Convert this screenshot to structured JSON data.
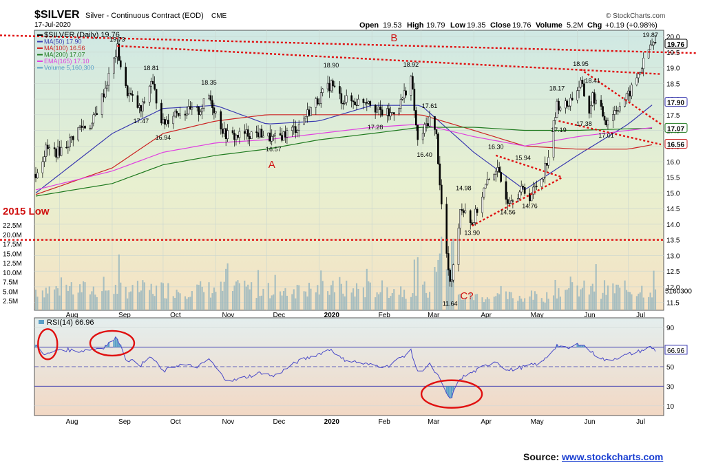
{
  "header": {
    "symbol_title": "$SILVER",
    "subtitle": "Silver - Continuous Contract (EOD)",
    "exchange": "CME",
    "date": "17-Jul-2020",
    "brand": "© StockCharts.com",
    "quote": {
      "open_label": "Open",
      "open": "19.53",
      "high_label": "High",
      "high": "19.79",
      "low_label": "Low",
      "low": "19.35",
      "close_label": "Close",
      "close": "19.76",
      "volume_label": "Volume",
      "volume": "5.2M",
      "chg_label": "Chg",
      "chg": "+0.19 (+0.98%)"
    }
  },
  "legend": [
    {
      "text": "$SILVER (Daily) 19.76",
      "color": "#000000"
    },
    {
      "text": "MA(50) 17.90",
      "color": "#3a3ab0"
    },
    {
      "text": "MA(100) 16.56",
      "color": "#cc2222"
    },
    {
      "text": "MA(200) 17.07",
      "color": "#1f7a1f"
    },
    {
      "text": "EMA(165) 17.10",
      "color": "#e040e0"
    },
    {
      "text": "Volume 5,160,300",
      "color": "#5aa0c8"
    }
  ],
  "annotations": {
    "label_A": "A",
    "label_B": "B",
    "label_C": "C?",
    "low_2015": "2015 Low",
    "price_labels": [
      {
        "text": "19.73",
        "date": "2019-09-04",
        "value": 19.73
      },
      {
        "text": "18.81",
        "date": "2019-09-24",
        "value": 18.81
      },
      {
        "text": "17.47",
        "date": "2019-09-18",
        "value": 17.47
      },
      {
        "text": "16.94",
        "date": "2019-10-01",
        "value": 16.94
      },
      {
        "text": "18.35",
        "date": "2019-10-28",
        "value": 18.35
      },
      {
        "text": "16.57",
        "date": "2019-12-05",
        "value": 16.57
      },
      {
        "text": "18.90",
        "date": "2020-01-08",
        "value": 18.9
      },
      {
        "text": "17.28",
        "date": "2020-02-03",
        "value": 17.28
      },
      {
        "text": "18.92",
        "date": "2020-02-24",
        "value": 18.92
      },
      {
        "text": "17.61",
        "date": "2020-03-06",
        "value": 17.61
      },
      {
        "text": "16.40",
        "date": "2020-03-03",
        "value": 16.4
      },
      {
        "text": "11.64",
        "date": "2020-03-18",
        "value": 11.64
      },
      {
        "text": "14.98",
        "date": "2020-03-26",
        "value": 14.98
      },
      {
        "text": "13.90",
        "date": "2020-03-31",
        "value": 13.9
      },
      {
        "text": "16.30",
        "date": "2020-04-14",
        "value": 16.3
      },
      {
        "text": "14.56",
        "date": "2020-04-21",
        "value": 14.56
      },
      {
        "text": "15.94",
        "date": "2020-04-30",
        "value": 15.94
      },
      {
        "text": "14.76",
        "date": "2020-05-04",
        "value": 14.76
      },
      {
        "text": "18.17",
        "date": "2020-05-20",
        "value": 18.17
      },
      {
        "text": "17.19",
        "date": "2020-05-21",
        "value": 17.19
      },
      {
        "text": "18.95",
        "date": "2020-06-03",
        "value": 18.95
      },
      {
        "text": "18.41",
        "date": "2020-06-10",
        "value": 18.41
      },
      {
        "text": "17.38",
        "date": "2020-06-05",
        "value": 17.38
      },
      {
        "text": "17.01",
        "date": "2020-06-18",
        "value": 17.01
      },
      {
        "text": "19.87",
        "date": "2020-07-14",
        "value": 19.87
      }
    ]
  },
  "badges": [
    {
      "text": "19.76",
      "value": 19.76,
      "color": "#000000",
      "bg": "#ffffff"
    },
    {
      "text": "17.90",
      "value": 17.9,
      "color": "#3a3ab0",
      "bg": "#ffffff"
    },
    {
      "text": "17.07",
      "value": 17.07,
      "color": "#1f7a1f",
      "bg": "#ffffff"
    },
    {
      "text": "16.56",
      "value": 16.56,
      "color": "#cc2222",
      "bg": "#ffffff"
    }
  ],
  "volume_badge": "5160300",
  "rsi": {
    "label": "RSI(14) 66.96",
    "badge": "66.96",
    "badge_value": 66.96,
    "ticks": [
      90,
      70,
      50,
      30,
      10
    ]
  },
  "source": {
    "label": "Source:",
    "link_text": "www.stockcharts.com"
  },
  "colors": {
    "price_bg_top": "#cfe8e4",
    "price_bg_bottom": "#f5e6c8",
    "rsi_bg_top": "#e8f0f0",
    "rsi_bg_bottom": "#f2dcc8",
    "dotted_red": "#e01010",
    "circle_red": "#e01010",
    "volume": "#9ab7be"
  },
  "chart_data": {
    "type": "candlestick",
    "x_axis": {
      "tick_labels": [
        "Aug",
        "Sep",
        "Oct",
        "Nov",
        "Dec",
        "2020",
        "Feb",
        "Mar",
        "Apr",
        "May",
        "Jun",
        "Jul"
      ],
      "tick_dates": [
        "2019-08-01",
        "2019-09-01",
        "2019-10-01",
        "2019-11-01",
        "2019-12-01",
        "2020-01-01",
        "2020-02-01",
        "2020-03-01",
        "2020-04-01",
        "2020-05-01",
        "2020-06-01",
        "2020-07-01"
      ],
      "range": [
        "2019-07-18",
        "2020-07-17"
      ]
    },
    "y_axis": {
      "tick_labels": [
        "20.0",
        "19.5",
        "19.0",
        "18.5",
        "18.0",
        "17.5",
        "17.0",
        "16.5",
        "16.0",
        "15.5",
        "15.0",
        "14.5",
        "14.0",
        "13.5",
        "13.0",
        "12.5",
        "12.0",
        "11.5"
      ],
      "range": [
        11.25,
        20.2
      ]
    },
    "volume_axis": {
      "tick_labels": [
        "22.5M",
        "20.0M",
        "17.5M",
        "15.0M",
        "12.5M",
        "10.0M",
        "7.5M",
        "5.0M",
        "2.5M"
      ],
      "range_millions": [
        0,
        22.5
      ]
    },
    "price_anchors": [
      [
        "2019-07-18",
        15.6
      ],
      [
        "2019-07-24",
        16.4
      ],
      [
        "2019-07-31",
        16.3
      ],
      [
        "2019-08-06",
        16.6
      ],
      [
        "2019-08-13",
        17.1
      ],
      [
        "2019-08-20",
        17.2
      ],
      [
        "2019-08-27",
        18.2
      ],
      [
        "2019-09-04",
        19.6
      ],
      [
        "2019-09-09",
        18.3
      ],
      [
        "2019-09-18",
        17.6
      ],
      [
        "2019-09-24",
        18.6
      ],
      [
        "2019-10-01",
        17.2
      ],
      [
        "2019-10-08",
        17.6
      ],
      [
        "2019-10-16",
        17.6
      ],
      [
        "2019-10-22",
        17.6
      ],
      [
        "2019-10-28",
        18.1
      ],
      [
        "2019-11-06",
        16.9
      ],
      [
        "2019-11-12",
        16.8
      ],
      [
        "2019-11-20",
        16.9
      ],
      [
        "2019-11-28",
        16.9
      ],
      [
        "2019-12-05",
        16.7
      ],
      [
        "2019-12-12",
        16.9
      ],
      [
        "2019-12-19",
        17.1
      ],
      [
        "2019-12-27",
        17.7
      ],
      [
        "2020-01-08",
        18.5
      ],
      [
        "2020-01-14",
        18.0
      ],
      [
        "2020-01-22",
        17.9
      ],
      [
        "2020-01-30",
        18.0
      ],
      [
        "2020-02-05",
        17.6
      ],
      [
        "2020-02-12",
        17.5
      ],
      [
        "2020-02-18",
        17.9
      ],
      [
        "2020-02-24",
        18.7
      ],
      [
        "2020-02-28",
        16.6
      ],
      [
        "2020-03-06",
        17.4
      ],
      [
        "2020-03-10",
        16.8
      ],
      [
        "2020-03-13",
        14.6
      ],
      [
        "2020-03-18",
        12.0
      ],
      [
        "2020-03-20",
        12.6
      ],
      [
        "2020-03-24",
        14.5
      ],
      [
        "2020-03-27",
        14.5
      ],
      [
        "2020-03-31",
        14.0
      ],
      [
        "2020-04-07",
        15.1
      ],
      [
        "2020-04-14",
        15.8
      ],
      [
        "2020-04-21",
        14.8
      ],
      [
        "2020-04-30",
        15.1
      ],
      [
        "2020-05-04",
        14.9
      ],
      [
        "2020-05-11",
        15.5
      ],
      [
        "2020-05-15",
        16.2
      ],
      [
        "2020-05-20",
        17.8
      ],
      [
        "2020-05-26",
        17.8
      ],
      [
        "2020-06-03",
        18.5
      ],
      [
        "2020-06-08",
        17.6
      ],
      [
        "2020-06-10",
        18.1
      ],
      [
        "2020-06-18",
        17.3
      ],
      [
        "2020-06-24",
        17.7
      ],
      [
        "2020-07-01",
        18.1
      ],
      [
        "2020-07-08",
        18.9
      ],
      [
        "2020-07-14",
        19.7
      ],
      [
        "2020-07-17",
        19.76
      ]
    ],
    "series": [
      {
        "name": "MA(50)",
        "anchors": [
          [
            "2019-07-18",
            15.0
          ],
          [
            "2019-09-01",
            16.9
          ],
          [
            "2019-10-01",
            17.7
          ],
          [
            "2019-11-01",
            17.8
          ],
          [
            "2019-12-01",
            17.2
          ],
          [
            "2020-01-01",
            17.3
          ],
          [
            "2020-02-01",
            17.8
          ],
          [
            "2020-03-01",
            17.8
          ],
          [
            "2020-04-01",
            16.3
          ],
          [
            "2020-05-01",
            15.1
          ],
          [
            "2020-06-01",
            16.2
          ],
          [
            "2020-07-01",
            17.2
          ],
          [
            "2020-07-17",
            17.9
          ]
        ]
      },
      {
        "name": "MA(100)",
        "anchors": [
          [
            "2019-07-18",
            14.95
          ],
          [
            "2019-09-01",
            15.8
          ],
          [
            "2019-10-01",
            16.9
          ],
          [
            "2019-11-01",
            17.3
          ],
          [
            "2019-12-01",
            17.5
          ],
          [
            "2020-01-01",
            17.5
          ],
          [
            "2020-02-01",
            17.5
          ],
          [
            "2020-03-01",
            17.5
          ],
          [
            "2020-04-01",
            17.0
          ],
          [
            "2020-05-01",
            16.5
          ],
          [
            "2020-06-01",
            16.4
          ],
          [
            "2020-07-01",
            16.4
          ],
          [
            "2020-07-17",
            16.56
          ]
        ]
      },
      {
        "name": "MA(200)",
        "anchors": [
          [
            "2019-07-18",
            14.9
          ],
          [
            "2019-09-01",
            15.3
          ],
          [
            "2019-10-01",
            15.9
          ],
          [
            "2019-11-01",
            16.2
          ],
          [
            "2019-12-01",
            16.4
          ],
          [
            "2020-01-01",
            16.7
          ],
          [
            "2020-02-01",
            16.9
          ],
          [
            "2020-03-01",
            17.1
          ],
          [
            "2020-04-01",
            17.1
          ],
          [
            "2020-05-01",
            17.0
          ],
          [
            "2020-06-01",
            17.0
          ],
          [
            "2020-07-01",
            17.05
          ],
          [
            "2020-07-17",
            17.07
          ]
        ]
      },
      {
        "name": "EMA(165)",
        "anchors": [
          [
            "2019-07-18",
            15.1
          ],
          [
            "2019-09-01",
            15.7
          ],
          [
            "2019-10-01",
            16.3
          ],
          [
            "2019-11-01",
            16.6
          ],
          [
            "2019-12-01",
            16.7
          ],
          [
            "2020-01-01",
            16.9
          ],
          [
            "2020-02-01",
            17.1
          ],
          [
            "2020-03-01",
            17.2
          ],
          [
            "2020-04-01",
            16.8
          ],
          [
            "2020-05-01",
            16.5
          ],
          [
            "2020-06-01",
            16.8
          ],
          [
            "2020-07-01",
            17.0
          ],
          [
            "2020-07-17",
            17.1
          ]
        ]
      }
    ],
    "rsi_anchors": [
      [
        "2019-07-18",
        72
      ],
      [
        "2019-07-24",
        62
      ],
      [
        "2019-08-01",
        68
      ],
      [
        "2019-08-13",
        66
      ],
      [
        "2019-08-27",
        70
      ],
      [
        "2019-09-04",
        80
      ],
      [
        "2019-09-09",
        58
      ],
      [
        "2019-09-18",
        52
      ],
      [
        "2019-09-24",
        60
      ],
      [
        "2019-10-01",
        45
      ],
      [
        "2019-10-10",
        52
      ],
      [
        "2019-10-22",
        50
      ],
      [
        "2019-10-28",
        58
      ],
      [
        "2019-11-06",
        38
      ],
      [
        "2019-11-12",
        36
      ],
      [
        "2019-11-28",
        44
      ],
      [
        "2019-12-05",
        40
      ],
      [
        "2019-12-19",
        55
      ],
      [
        "2020-01-08",
        68
      ],
      [
        "2020-01-14",
        58
      ],
      [
        "2020-01-30",
        52
      ],
      [
        "2020-02-10",
        50
      ],
      [
        "2020-02-24",
        66
      ],
      [
        "2020-02-28",
        44
      ],
      [
        "2020-03-06",
        52
      ],
      [
        "2020-03-11",
        40
      ],
      [
        "2020-03-18",
        16
      ],
      [
        "2020-03-24",
        38
      ],
      [
        "2020-03-31",
        44
      ],
      [
        "2020-04-14",
        56
      ],
      [
        "2020-04-21",
        46
      ],
      [
        "2020-05-01",
        50
      ],
      [
        "2020-05-11",
        54
      ],
      [
        "2020-05-20",
        72
      ],
      [
        "2020-05-26",
        68
      ],
      [
        "2020-06-03",
        74
      ],
      [
        "2020-06-10",
        64
      ],
      [
        "2020-06-18",
        56
      ],
      [
        "2020-06-30",
        62
      ],
      [
        "2020-07-08",
        66
      ],
      [
        "2020-07-14",
        70
      ],
      [
        "2020-07-17",
        66.96
      ]
    ],
    "resistance_line_top": {
      "points": [
        [
          "2019-07-18",
          19.95
        ],
        [
          "2020-07-17",
          19.5
        ]
      ],
      "style": "dotted",
      "color": "#e01010"
    },
    "resistance_line_second": {
      "points": [
        [
          "2019-09-04",
          19.7
        ],
        [
          "2020-07-17",
          18.8
        ]
      ],
      "style": "dotted",
      "color": "#e01010"
    },
    "triangle_upper": {
      "points": [
        [
          "2020-04-14",
          16.2
        ],
        [
          "2020-05-20",
          15.5
        ]
      ],
      "style": "dotted",
      "color": "#e01010"
    },
    "triangle_lower": {
      "points": [
        [
          "2020-03-31",
          13.95
        ],
        [
          "2020-05-20",
          15.5
        ]
      ],
      "style": "dotted",
      "color": "#e01010"
    },
    "wedge_upper": {
      "points": [
        [
          "2020-06-03",
          18.95
        ],
        [
          "2020-07-17",
          17.2
        ]
      ],
      "style": "dotted",
      "color": "#e01010"
    },
    "wedge_lower": {
      "points": [
        [
          "2020-05-21",
          17.3
        ],
        [
          "2020-07-17",
          16.55
        ]
      ],
      "style": "dotted",
      "color": "#e01010"
    },
    "low_2015_level": 13.5,
    "rsi_ellipses": [
      {
        "center_date": "2019-07-25",
        "center_value": 73
      },
      {
        "center_date": "2019-09-01",
        "center_value": 74
      },
      {
        "center_date": "2020-03-19",
        "center_value": 22
      }
    ]
  }
}
